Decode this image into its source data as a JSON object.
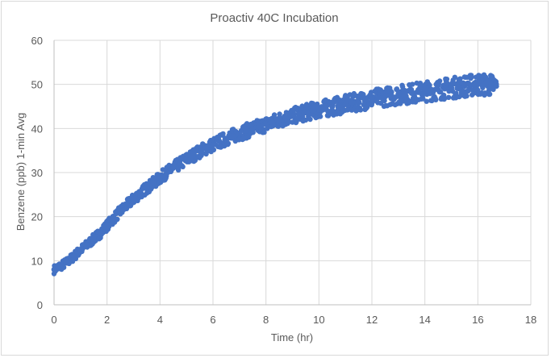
{
  "chart_data": {
    "type": "scatter",
    "title": "Proactiv 40C Incubation",
    "xlabel": "Time (hr)",
    "ylabel": "Benzene (ppb) 1-min Avg",
    "xlim": [
      0,
      18
    ],
    "ylim": [
      0,
      60
    ],
    "xticks": [
      0,
      2,
      4,
      6,
      8,
      10,
      12,
      14,
      16,
      18
    ],
    "yticks": [
      0,
      10,
      20,
      30,
      40,
      50,
      60
    ],
    "grid": true,
    "legend": "none",
    "series": [
      {
        "color": "#4472c4",
        "marker": "filled-circle",
        "x": [
          0,
          0.25,
          0.5,
          0.75,
          1,
          1.25,
          1.5,
          1.75,
          2,
          2.25,
          2.5,
          2.75,
          3,
          3.25,
          3.5,
          3.75,
          4,
          4.25,
          4.5,
          4.75,
          5,
          5.25,
          5.5,
          5.75,
          6,
          6.25,
          6.5,
          6.75,
          7,
          7.25,
          7.5,
          7.75,
          8,
          8.25,
          8.5,
          8.75,
          9,
          9.25,
          9.5,
          9.75,
          10,
          10.25,
          10.5,
          10.75,
          11,
          11.25,
          11.5,
          11.75,
          12,
          12.25,
          12.5,
          12.75,
          13,
          13.25,
          13.5,
          13.75,
          14,
          14.25,
          14.5,
          14.75,
          15,
          15.25,
          15.5,
          15.75,
          16,
          16.25,
          16.5,
          16.7
        ],
        "y": [
          8,
          8.8,
          9.7,
          11,
          12.4,
          13.6,
          15,
          16.3,
          18,
          19.6,
          21.2,
          22.6,
          24,
          25.3,
          26.5,
          27.6,
          28.8,
          30,
          31,
          32,
          33,
          33.9,
          34.8,
          35.6,
          36.3,
          37,
          37.7,
          38.3,
          38.9,
          39.4,
          39.9,
          40.4,
          40.9,
          41.4,
          41.9,
          42.4,
          42.8,
          43.2,
          43.6,
          44,
          44.3,
          44.6,
          44.9,
          45.2,
          45.5,
          45.8,
          46.1,
          46.4,
          46.7,
          47,
          47.2,
          47.4,
          47.6,
          47.8,
          48,
          48.2,
          48.4,
          48.6,
          48.8,
          49,
          49.2,
          49.4,
          49.6,
          49.8,
          50,
          49.9,
          49.8,
          49.6
        ],
        "spread": 1.6
      }
    ]
  }
}
